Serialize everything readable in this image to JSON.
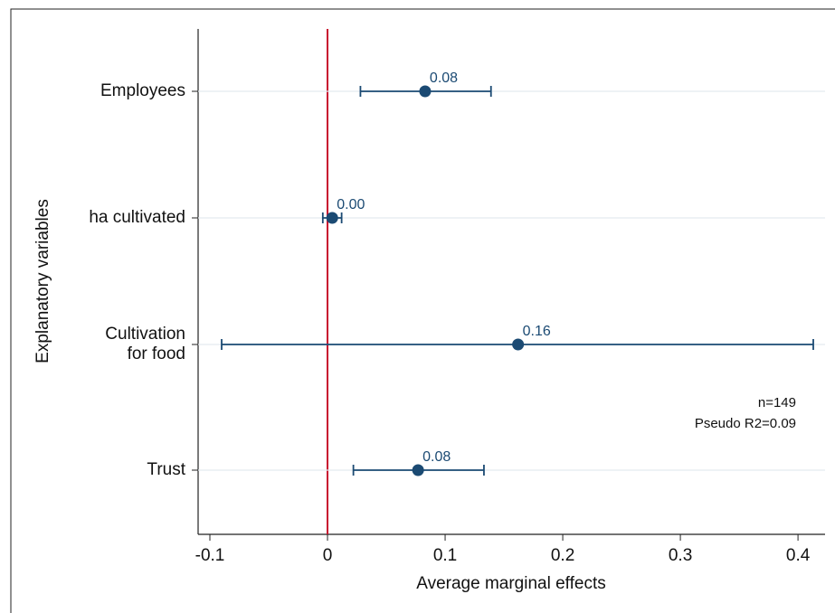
{
  "chart_data": {
    "type": "errorbar",
    "categories": [
      "Employees",
      "ha cultivated",
      "Cultivation\nfor food",
      "Trust"
    ],
    "values": [
      0.083,
      0.004,
      0.162,
      0.077
    ],
    "value_labels": [
      "0.08",
      "0.00",
      "0.16",
      "0.08"
    ],
    "ci_low": [
      0.028,
      -0.004,
      -0.09,
      0.022
    ],
    "ci_high": [
      0.139,
      0.012,
      0.413,
      0.133
    ],
    "color": "#1b4a73",
    "reference_line": {
      "value": 0,
      "color": "#c8102e"
    },
    "xlim": [
      -0.11,
      0.423
    ],
    "xticks": [
      -0.1,
      0,
      0.1,
      0.2,
      0.3,
      0.4
    ],
    "xlabel": "Average marginal effects",
    "ylabel": "Explanatory variables",
    "annotations": [
      "n=149",
      "Pseudo R2=0.09"
    ],
    "grid": true
  }
}
